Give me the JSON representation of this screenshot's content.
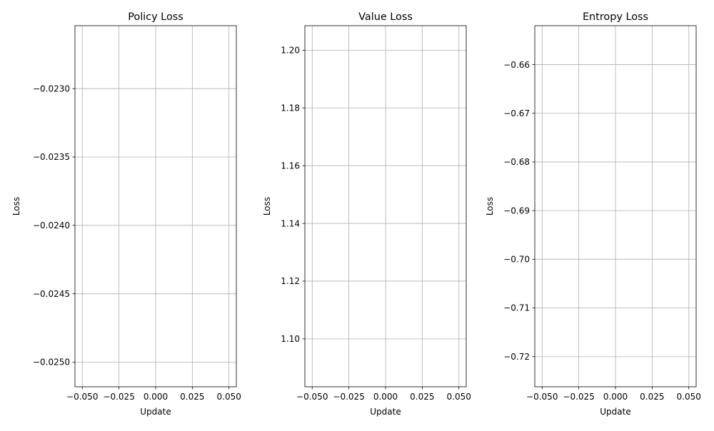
{
  "chart_data": [
    {
      "type": "line",
      "title": "Policy Loss",
      "xlabel": "Update",
      "ylabel": "Loss",
      "grid": true,
      "xlim": [
        -0.055,
        0.055
      ],
      "ylim": [
        -0.02518,
        -0.02254
      ],
      "xticks": [
        -0.05,
        -0.025,
        0.0,
        0.025,
        0.05
      ],
      "xtick_labels": [
        "−0.050",
        "−0.025",
        "0.000",
        "0.025",
        "0.050"
      ],
      "yticks": [
        -0.025,
        -0.0245,
        -0.024,
        -0.0235,
        -0.023
      ],
      "ytick_labels": [
        "−0.0250",
        "−0.0245",
        "−0.0240",
        "−0.0235",
        "−0.0230"
      ],
      "series": [
        {
          "x": [],
          "y": []
        }
      ]
    },
    {
      "type": "line",
      "title": "Value Loss",
      "xlabel": "Update",
      "ylabel": "Loss",
      "grid": true,
      "xlim": [
        -0.055,
        0.055
      ],
      "ylim": [
        1.0834,
        1.2085
      ],
      "xticks": [
        -0.05,
        -0.025,
        0.0,
        0.025,
        0.05
      ],
      "xtick_labels": [
        "−0.050",
        "−0.025",
        "0.000",
        "0.025",
        "0.050"
      ],
      "yticks": [
        1.1,
        1.12,
        1.14,
        1.16,
        1.18,
        1.2
      ],
      "ytick_labels": [
        "1.10",
        "1.12",
        "1.14",
        "1.16",
        "1.18",
        "1.20"
      ],
      "series": [
        {
          "x": [],
          "y": []
        }
      ]
    },
    {
      "type": "line",
      "title": "Entropy Loss",
      "xlabel": "Update",
      "ylabel": "Loss",
      "grid": true,
      "xlim": [
        -0.055,
        0.055
      ],
      "ylim": [
        -0.7262,
        -0.652
      ],
      "xticks": [
        -0.05,
        -0.025,
        0.0,
        0.025,
        0.05
      ],
      "xtick_labels": [
        "−0.050",
        "−0.025",
        "0.000",
        "0.025",
        "0.050"
      ],
      "yticks": [
        -0.72,
        -0.71,
        -0.7,
        -0.69,
        -0.68,
        -0.67,
        -0.66
      ],
      "ytick_labels": [
        "−0.72",
        "−0.71",
        "−0.70",
        "−0.69",
        "−0.68",
        "−0.67",
        "−0.66"
      ],
      "series": [
        {
          "x": [],
          "y": []
        }
      ]
    }
  ]
}
